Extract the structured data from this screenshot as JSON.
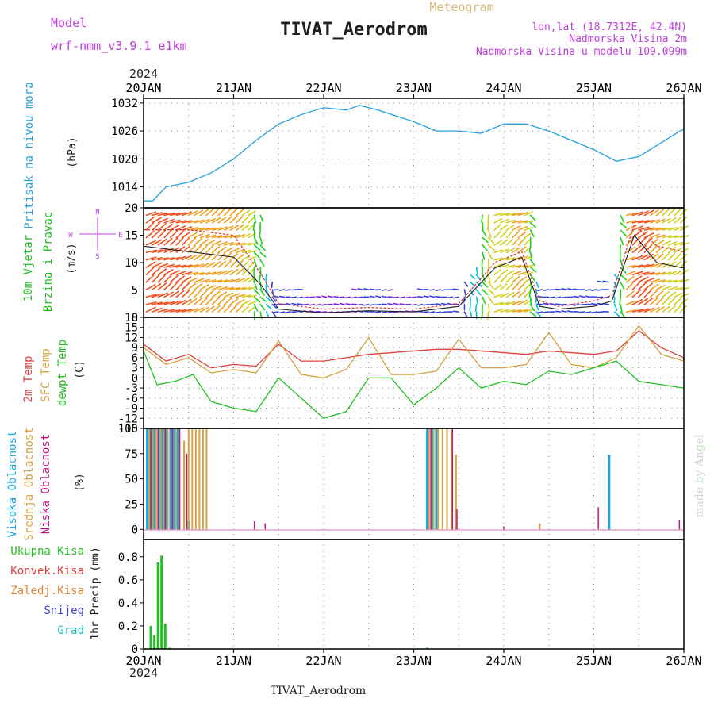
{
  "header": {
    "model_label": "Model",
    "model_name": "wrf-nmm_v3.9.1 e1km",
    "title": "TIVAT_Aerodrom",
    "subtitle": "Meteogram",
    "location": "lon,lat (18.7312E, 42.4N)",
    "elevation": "Nadmorska Visina 2m",
    "model_elevation": "Nadmorska Visina u modelu 109.099m",
    "year_top": "2024",
    "year_bottom": "2024",
    "footer": "TIVAT_Aerodrom",
    "credit": "made by Angel"
  },
  "colors": {
    "pressure": "#22a0e0",
    "temp2m": "#e04040",
    "sfc": "#d8a040",
    "dewpt": "#20c020",
    "cloud_high": "#18a8e0",
    "cloud_mid": "#d8a040",
    "cloud_low": "#c01880",
    "precip_total": "#20c020",
    "precip_conv": "#e04040",
    "precip_frz": "#e08030",
    "precip_snow": "#4040d0",
    "precip_grad": "#20c0c0",
    "wind_label": "#c040e0"
  },
  "chart_data": [
    {
      "type": "line",
      "panel": "pressure",
      "ylabel": [
        "Pritisak na nivou mora",
        "(hPa)"
      ],
      "x_ticks": [
        "20JAN",
        "21JAN",
        "22JAN",
        "23JAN",
        "24JAN",
        "25JAN",
        "26JAN"
      ],
      "yticks": [
        1014,
        1020,
        1026,
        1032
      ],
      "ylim": [
        1009.5,
        1033
      ],
      "grid": true,
      "series": [
        {
          "x": [
            0,
            0.1,
            0.25,
            0.5,
            0.75,
            1.0,
            1.25,
            1.5,
            1.75,
            2.0,
            2.25,
            2.4,
            2.6,
            3.0,
            3.25,
            3.5,
            3.75,
            4.0,
            4.25,
            4.5,
            4.75,
            5.0,
            5.25,
            5.5,
            5.75,
            6.0
          ],
          "y": [
            1011,
            1011,
            1014,
            1015,
            1017,
            1020,
            1024,
            1027.5,
            1029.5,
            1031,
            1030.5,
            1031.5,
            1030.5,
            1028,
            1026,
            1026,
            1025.5,
            1027.5,
            1027.5,
            1026,
            1024,
            1022,
            1019.5,
            1020.5,
            1023.5,
            1026.5
          ]
        }
      ]
    },
    {
      "type": "barbs",
      "panel": "wind",
      "ylabel": [
        "10m Vjetar",
        "Brzina i Pravac",
        "(m/s)"
      ],
      "compass": [
        "N",
        "E",
        "S",
        "W"
      ],
      "yticks": [
        0,
        5,
        10,
        15,
        20
      ],
      "ylim": [
        0,
        20
      ],
      "speed_max": {
        "x": [
          0,
          0.5,
          1.0,
          1.3,
          1.5,
          2.0,
          2.5,
          3.0,
          3.5,
          3.9,
          4.2,
          4.4,
          4.6,
          5.0,
          5.2,
          5.45,
          5.7,
          6.0
        ],
        "y": [
          16,
          16,
          15,
          8,
          2.5,
          1.5,
          1.8,
          1.5,
          2.5,
          10,
          12,
          3,
          2,
          3,
          4,
          17,
          13,
          12
        ]
      },
      "speed_mean": {
        "x": [
          0,
          0.5,
          1.0,
          1.3,
          1.5,
          2.0,
          2.5,
          3.0,
          3.5,
          3.9,
          4.2,
          4.4,
          4.6,
          5.0,
          5.2,
          5.45,
          5.7,
          6.0
        ],
        "y": [
          13,
          12,
          11,
          6,
          1.5,
          0.8,
          1.2,
          1,
          2,
          9,
          11,
          2,
          1.5,
          2,
          3,
          15,
          10,
          9
        ]
      }
    },
    {
      "type": "line",
      "panel": "temperature",
      "ylabel": [
        "2m Temp",
        "SFC Temp",
        "dewpt Temp",
        "(C)"
      ],
      "yticks": [
        -15,
        -12,
        -9,
        -6,
        -3,
        0,
        3,
        6,
        9,
        12,
        15,
        18
      ],
      "ylim": [
        -15,
        18
      ],
      "grid": true,
      "series": [
        {
          "name": "2m Temp",
          "x": [
            0,
            0.25,
            0.5,
            0.75,
            1.0,
            1.25,
            1.5,
            1.75,
            2.0,
            2.25,
            2.5,
            2.75,
            3.0,
            3.25,
            3.5,
            3.75,
            4.0,
            4.25,
            4.5,
            4.75,
            5.0,
            5.25,
            5.5,
            5.75,
            6.0
          ],
          "y": [
            10,
            5,
            7,
            3,
            4,
            3.5,
            10,
            5,
            5,
            6,
            7,
            7.5,
            8,
            8.5,
            8.5,
            8,
            7.5,
            7,
            8,
            7.5,
            7,
            8,
            14,
            9,
            6
          ]
        },
        {
          "name": "SFC Temp",
          "x": [
            0,
            0.25,
            0.5,
            0.75,
            1.0,
            1.25,
            1.5,
            1.75,
            2.0,
            2.25,
            2.5,
            2.75,
            3.0,
            3.25,
            3.5,
            3.75,
            4.0,
            4.25,
            4.5,
            4.75,
            5.0,
            5.25,
            5.5,
            5.75,
            6.0
          ],
          "y": [
            9,
            4,
            6,
            1.5,
            2.5,
            1.5,
            11,
            1,
            0,
            2.5,
            12,
            1,
            1,
            2,
            11.5,
            3,
            3,
            4,
            13.5,
            4,
            3,
            6,
            15.5,
            7,
            5
          ]
        },
        {
          "name": "dewpt Temp",
          "x": [
            0,
            0.15,
            0.35,
            0.55,
            0.75,
            1.0,
            1.25,
            1.5,
            1.75,
            2.0,
            2.25,
            2.5,
            2.75,
            3.0,
            3.25,
            3.5,
            3.75,
            4.0,
            4.25,
            4.5,
            4.75,
            5.0,
            5.25,
            5.5,
            5.75,
            6.0
          ],
          "y": [
            8,
            -2,
            -1,
            1,
            -7,
            -9,
            -10,
            0,
            -6,
            -12,
            -10,
            0,
            0,
            -8,
            -3,
            3,
            -3,
            -1,
            -2,
            2,
            1,
            3,
            5,
            -1,
            -2,
            -3
          ]
        }
      ]
    },
    {
      "type": "bar",
      "panel": "cloud",
      "ylabel": [
        "Visoka Oblacnost",
        "Srednja Oblacnost",
        "Niska Oblacnost",
        "(%)"
      ],
      "yticks": [
        0,
        25,
        50,
        75,
        100
      ],
      "ylim": [
        0,
        100
      ],
      "series": [
        {
          "name": "Visoka Oblacnost",
          "x": [
            0.04,
            0.08,
            0.12,
            0.17,
            0.21,
            0.25,
            0.3,
            0.34,
            0.38,
            0.5,
            3.15,
            3.2,
            3.25,
            5.17
          ],
          "y": [
            100,
            100,
            100,
            100,
            100,
            100,
            100,
            100,
            100,
            8,
            100,
            100,
            100,
            74
          ]
        },
        {
          "name": "Srednja Oblacnost",
          "x": [
            0.06,
            0.1,
            0.14,
            0.19,
            0.23,
            0.27,
            0.32,
            0.36,
            0.4,
            0.45,
            0.5,
            0.54,
            0.58,
            0.62,
            0.66,
            0.7,
            3.17,
            3.22,
            3.27,
            3.32,
            3.37,
            3.42,
            3.47,
            4.4
          ],
          "y": [
            100,
            100,
            100,
            100,
            100,
            100,
            100,
            100,
            100,
            88,
            100,
            100,
            100,
            100,
            100,
            100,
            100,
            100,
            100,
            100,
            100,
            100,
            74,
            6
          ]
        },
        {
          "name": "Niska Oblacnost",
          "x": [
            0.08,
            0.16,
            0.24,
            0.32,
            0.4,
            0.48,
            1.23,
            1.35,
            3.19,
            3.43,
            3.48,
            4.0,
            5.05,
            5.95
          ],
          "y": [
            100,
            100,
            100,
            100,
            100,
            75,
            8,
            6,
            100,
            100,
            20,
            3,
            22,
            9
          ]
        }
      ]
    },
    {
      "type": "bar",
      "panel": "precip",
      "ylabel": [
        "1hr Precip (mm)"
      ],
      "legend": [
        "Ukupna Kisa",
        "Konvek.Kisa",
        "Zaledj.Kisa",
        "Snijeg",
        "Grad"
      ],
      "yticks": [
        0,
        0.2,
        0.4,
        0.6,
        0.8
      ],
      "ylim": [
        0,
        0.95
      ],
      "series": [
        {
          "name": "Ukupna Kisa",
          "x": [
            0.08,
            0.12,
            0.16,
            0.2,
            0.24,
            0.29,
            3.15
          ],
          "y": [
            0.2,
            0.12,
            0.75,
            0.81,
            0.22,
            0.01,
            0.01
          ]
        }
      ]
    }
  ]
}
